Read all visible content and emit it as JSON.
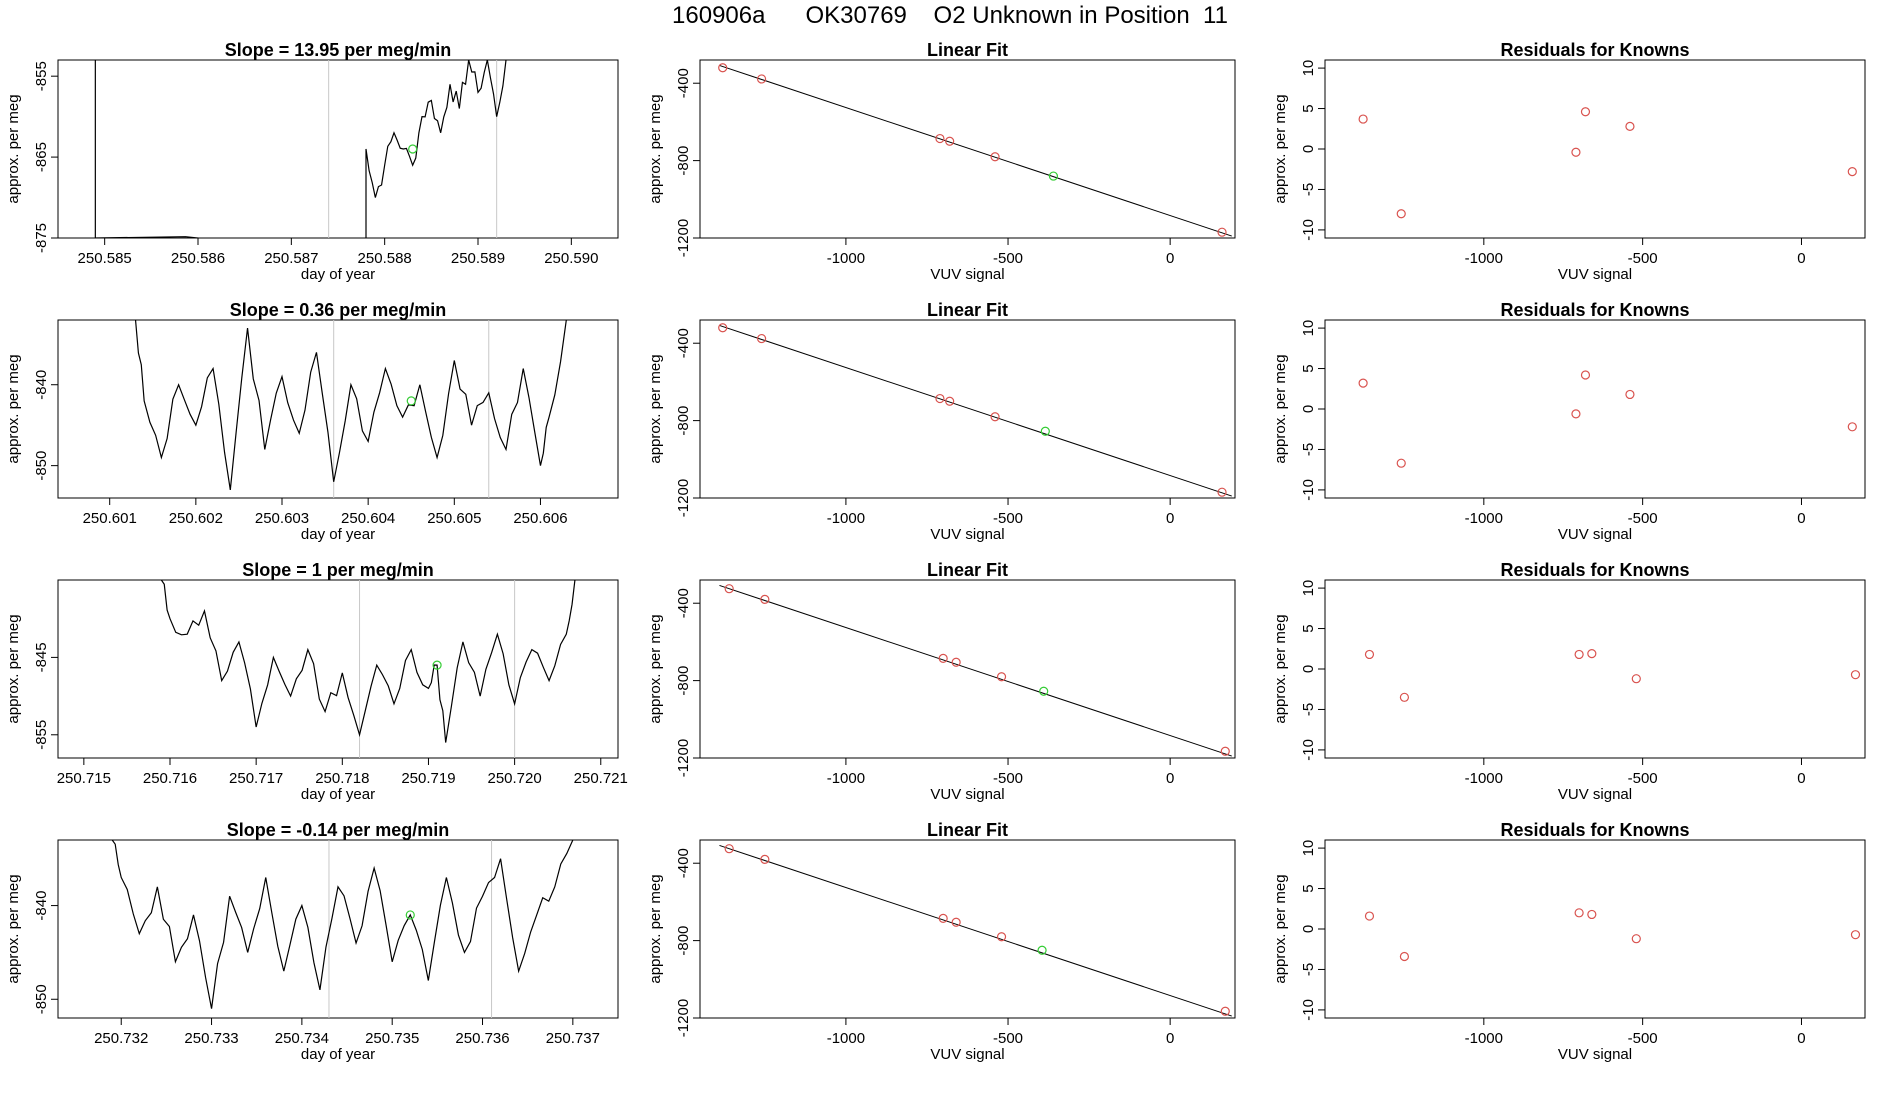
{
  "page_title": "160906a      OK30769    O2 Unknown in Position  11",
  "colors": {
    "trace": "#000000",
    "known_point": "#d9534f",
    "unknown_point": "#33cc33",
    "window_line": "#c8c8c8",
    "fit_line": "#000000"
  },
  "chart_data": [
    {
      "type": "line",
      "title": "Slope =  13.95  per meg/min",
      "xlabel": "day of year",
      "ylabel": "approx. per meg",
      "xlim": [
        250.5845,
        250.5905
      ],
      "ylim": [
        -875,
        -853
      ],
      "xticks": [
        "250.585",
        "250.586",
        "250.587",
        "250.588",
        "250.589",
        "250.590"
      ],
      "yticks": [
        "-855",
        "-865",
        "-875"
      ],
      "window_start": 250.5874,
      "window_end": 250.5892,
      "mean_point": {
        "x": 250.5883,
        "y": -864
      },
      "trace_seed": 7,
      "trace": [
        [
          250.5849,
          -853
        ],
        [
          250.5849,
          -875
        ],
        [
          250.5878,
          -875
        ],
        [
          250.5878,
          -864
        ],
        [
          250.5879,
          -870
        ],
        [
          250.588,
          -866
        ],
        [
          250.5881,
          -862
        ],
        [
          250.5882,
          -864
        ],
        [
          250.5883,
          -866
        ],
        [
          250.5884,
          -860
        ],
        [
          250.5885,
          -858
        ],
        [
          250.5886,
          -862
        ],
        [
          250.5887,
          -856
        ],
        [
          250.5888,
          -859
        ],
        [
          250.5889,
          -853
        ],
        [
          250.589,
          -857
        ],
        [
          250.5891,
          -853
        ],
        [
          250.5892,
          -860
        ],
        [
          250.5893,
          -853
        ]
      ]
    },
    {
      "type": "scatter",
      "title": "Linear Fit",
      "xlabel": "VUV signal",
      "ylabel": "approx. per meg",
      "xlim": [
        -1450,
        200
      ],
      "ylim": [
        -1200,
        -280
      ],
      "xticks": [
        "-1000",
        "-500",
        "0"
      ],
      "yticks": [
        "-400",
        "-800",
        "-1200"
      ],
      "known_points": [
        [
          -1380,
          -320
        ],
        [
          -1260,
          -378
        ],
        [
          -710,
          -686
        ],
        [
          -680,
          -700
        ],
        [
          -540,
          -780
        ],
        [
          160,
          -1170
        ]
      ],
      "unknown_point": [
        -360,
        -880
      ],
      "fit_line": [
        [
          -1390,
          -308
        ],
        [
          190,
          -1190
        ]
      ]
    },
    {
      "type": "scatter",
      "title": "Residuals for Knowns",
      "xlabel": "VUV signal",
      "ylabel": "approx. per meg",
      "xlim": [
        -1500,
        200
      ],
      "ylim": [
        -11,
        11
      ],
      "xticks": [
        "-1000",
        "-500",
        "0"
      ],
      "yticks": [
        "10",
        "5",
        "0",
        "-5",
        "-10"
      ],
      "points": [
        [
          -1380,
          3.7
        ],
        [
          -1260,
          -8.0
        ],
        [
          -710,
          -0.4
        ],
        [
          -680,
          4.6
        ],
        [
          -540,
          2.8
        ],
        [
          160,
          -2.8
        ]
      ]
    },
    {
      "type": "line",
      "title": "Slope =  0.36  per meg/min",
      "xlabel": "day of year",
      "ylabel": "approx. per meg",
      "xlim": [
        250.6004,
        250.6069
      ],
      "ylim": [
        -854,
        -832
      ],
      "xticks": [
        "250.601",
        "250.602",
        "250.603",
        "250.604",
        "250.605",
        "250.606"
      ],
      "yticks": [
        "-840",
        "-850"
      ],
      "window_start": 250.6036,
      "window_end": 250.6054,
      "mean_point": {
        "x": 250.6045,
        "y": -842
      },
      "trace_seed": 3,
      "trace": [
        [
          250.6013,
          -832
        ],
        [
          250.6014,
          -842
        ],
        [
          250.6016,
          -849
        ],
        [
          250.6018,
          -840
        ],
        [
          250.602,
          -845
        ],
        [
          250.6022,
          -838
        ],
        [
          250.6024,
          -853
        ],
        [
          250.6026,
          -833
        ],
        [
          250.6028,
          -848
        ],
        [
          250.603,
          -839
        ],
        [
          250.6032,
          -846
        ],
        [
          250.6034,
          -836
        ],
        [
          250.6036,
          -852
        ],
        [
          250.6038,
          -840
        ],
        [
          250.604,
          -847
        ],
        [
          250.6042,
          -838
        ],
        [
          250.6044,
          -844
        ],
        [
          250.6046,
          -840
        ],
        [
          250.6048,
          -849
        ],
        [
          250.605,
          -837
        ],
        [
          250.6052,
          -845
        ],
        [
          250.6054,
          -841
        ],
        [
          250.6056,
          -848
        ],
        [
          250.6058,
          -838
        ],
        [
          250.606,
          -850
        ],
        [
          250.6061,
          -844
        ],
        [
          250.6063,
          -832
        ]
      ]
    },
    {
      "type": "scatter",
      "title": "Linear Fit",
      "xlabel": "VUV signal",
      "ylabel": "approx. per meg",
      "xlim": [
        -1450,
        200
      ],
      "ylim": [
        -1200,
        -280
      ],
      "xticks": [
        "-1000",
        "-500",
        "0"
      ],
      "yticks": [
        "-400",
        "-800",
        "-1200"
      ],
      "known_points": [
        [
          -1380,
          -320
        ],
        [
          -1260,
          -376
        ],
        [
          -710,
          -686
        ],
        [
          -680,
          -700
        ],
        [
          -540,
          -780
        ],
        [
          160,
          -1170
        ]
      ],
      "unknown_point": [
        -385,
        -855
      ],
      "fit_line": [
        [
          -1390,
          -308
        ],
        [
          190,
          -1190
        ]
      ]
    },
    {
      "type": "scatter",
      "title": "Residuals for Knowns",
      "xlabel": "VUV signal",
      "ylabel": "approx. per meg",
      "xlim": [
        -1500,
        200
      ],
      "ylim": [
        -11,
        11
      ],
      "xticks": [
        "-1000",
        "-500",
        "0"
      ],
      "yticks": [
        "10",
        "5",
        "0",
        "-5",
        "-10"
      ],
      "points": [
        [
          -1380,
          3.2
        ],
        [
          -1260,
          -6.7
        ],
        [
          -710,
          -0.6
        ],
        [
          -680,
          4.2
        ],
        [
          -540,
          1.8
        ],
        [
          160,
          -2.2
        ]
      ]
    },
    {
      "type": "line",
      "title": "Slope =  1  per meg/min",
      "xlabel": "day of year",
      "ylabel": "approx. per meg",
      "xlim": [
        250.7147,
        250.7212
      ],
      "ylim": [
        -858,
        -835
      ],
      "xticks": [
        "250.715",
        "250.716",
        "250.717",
        "250.718",
        "250.719",
        "250.720",
        "250.721"
      ],
      "yticks": [
        "-845",
        "-855"
      ],
      "window_start": 250.7182,
      "window_end": 250.72,
      "mean_point": {
        "x": 250.7191,
        "y": -846
      },
      "trace_seed": 11,
      "trace": [
        [
          250.7159,
          -835
        ],
        [
          250.716,
          -840
        ],
        [
          250.7162,
          -842
        ],
        [
          250.7164,
          -839
        ],
        [
          250.7166,
          -848
        ],
        [
          250.7168,
          -843
        ],
        [
          250.717,
          -854
        ],
        [
          250.7172,
          -845
        ],
        [
          250.7174,
          -850
        ],
        [
          250.7176,
          -844
        ],
        [
          250.7178,
          -852
        ],
        [
          250.718,
          -847
        ],
        [
          250.7182,
          -855
        ],
        [
          250.7184,
          -846
        ],
        [
          250.7186,
          -851
        ],
        [
          250.7188,
          -844
        ],
        [
          250.719,
          -849
        ],
        [
          250.7191,
          -846
        ],
        [
          250.7192,
          -856
        ],
        [
          250.7194,
          -843
        ],
        [
          250.7196,
          -850
        ],
        [
          250.7198,
          -842
        ],
        [
          250.72,
          -851
        ],
        [
          250.7202,
          -844
        ],
        [
          250.7204,
          -848
        ],
        [
          250.7206,
          -842
        ],
        [
          250.7207,
          -835
        ]
      ]
    },
    {
      "type": "scatter",
      "title": "Linear Fit",
      "xlabel": "VUV signal",
      "ylabel": "approx. per meg",
      "xlim": [
        -1450,
        200
      ],
      "ylim": [
        -1200,
        -280
      ],
      "xticks": [
        "-1000",
        "-500",
        "0"
      ],
      "yticks": [
        "-400",
        "-800",
        "-1200"
      ],
      "known_points": [
        [
          -1360,
          -325
        ],
        [
          -1250,
          -380
        ],
        [
          -700,
          -685
        ],
        [
          -660,
          -705
        ],
        [
          -520,
          -780
        ],
        [
          170,
          -1165
        ]
      ],
      "unknown_point": [
        -390,
        -855
      ],
      "fit_line": [
        [
          -1390,
          -308
        ],
        [
          190,
          -1190
        ]
      ]
    },
    {
      "type": "scatter",
      "title": "Residuals for Knowns",
      "xlabel": "VUV signal",
      "ylabel": "approx. per meg",
      "xlim": [
        -1500,
        200
      ],
      "ylim": [
        -11,
        11
      ],
      "xticks": [
        "-1000",
        "-500",
        "0"
      ],
      "yticks": [
        "10",
        "5",
        "0",
        "-5",
        "-10"
      ],
      "points": [
        [
          -1360,
          1.8
        ],
        [
          -1250,
          -3.5
        ],
        [
          -700,
          1.8
        ],
        [
          -660,
          1.9
        ],
        [
          -520,
          -1.2
        ],
        [
          170,
          -0.7
        ]
      ]
    },
    {
      "type": "line",
      "title": "Slope =  -0.14  per meg/min",
      "xlabel": "day of year",
      "ylabel": "approx. per meg",
      "xlim": [
        250.7313,
        250.7375
      ],
      "ylim": [
        -852,
        -833
      ],
      "xticks": [
        "250.732",
        "250.733",
        "250.734",
        "250.735",
        "250.736",
        "250.737"
      ],
      "yticks": [
        "-840",
        "-850"
      ],
      "window_start": 250.7343,
      "window_end": 250.7361,
      "mean_point": {
        "x": 250.7352,
        "y": -841
      },
      "trace_seed": 5,
      "trace": [
        [
          250.7319,
          -833
        ],
        [
          250.732,
          -837
        ],
        [
          250.7322,
          -843
        ],
        [
          250.7324,
          -838
        ],
        [
          250.7326,
          -846
        ],
        [
          250.7328,
          -841
        ],
        [
          250.733,
          -851
        ],
        [
          250.7332,
          -839
        ],
        [
          250.7334,
          -845
        ],
        [
          250.7336,
          -837
        ],
        [
          250.7338,
          -847
        ],
        [
          250.734,
          -840
        ],
        [
          250.7342,
          -849
        ],
        [
          250.7344,
          -838
        ],
        [
          250.7346,
          -844
        ],
        [
          250.7348,
          -836
        ],
        [
          250.735,
          -846
        ],
        [
          250.7352,
          -841
        ],
        [
          250.7354,
          -848
        ],
        [
          250.7356,
          -837
        ],
        [
          250.7358,
          -845
        ],
        [
          250.736,
          -839
        ],
        [
          250.7362,
          -835
        ],
        [
          250.7364,
          -847
        ],
        [
          250.7366,
          -841
        ],
        [
          250.7368,
          -838
        ],
        [
          250.737,
          -833
        ]
      ]
    },
    {
      "type": "scatter",
      "title": "Linear Fit",
      "xlabel": "VUV signal",
      "ylabel": "approx. per meg",
      "xlim": [
        -1450,
        200
      ],
      "ylim": [
        -1200,
        -280
      ],
      "xticks": [
        "-1000",
        "-500",
        "0"
      ],
      "yticks": [
        "-400",
        "-800",
        "-1200"
      ],
      "known_points": [
        [
          -1360,
          -325
        ],
        [
          -1250,
          -380
        ],
        [
          -700,
          -685
        ],
        [
          -660,
          -705
        ],
        [
          -520,
          -780
        ],
        [
          170,
          -1165
        ]
      ],
      "unknown_point": [
        -395,
        -850
      ],
      "fit_line": [
        [
          -1390,
          -308
        ],
        [
          190,
          -1190
        ]
      ]
    },
    {
      "type": "scatter",
      "title": "Residuals for Knowns",
      "xlabel": "VUV signal",
      "ylabel": "approx. per meg",
      "xlim": [
        -1500,
        200
      ],
      "ylim": [
        -11,
        11
      ],
      "xticks": [
        "-1000",
        "-500",
        "0"
      ],
      "yticks": [
        "10",
        "5",
        "0",
        "-5",
        "-10"
      ],
      "points": [
        [
          -1360,
          1.6
        ],
        [
          -1250,
          -3.4
        ],
        [
          -700,
          2.0
        ],
        [
          -660,
          1.8
        ],
        [
          -520,
          -1.2
        ],
        [
          170,
          -0.7
        ]
      ]
    }
  ]
}
